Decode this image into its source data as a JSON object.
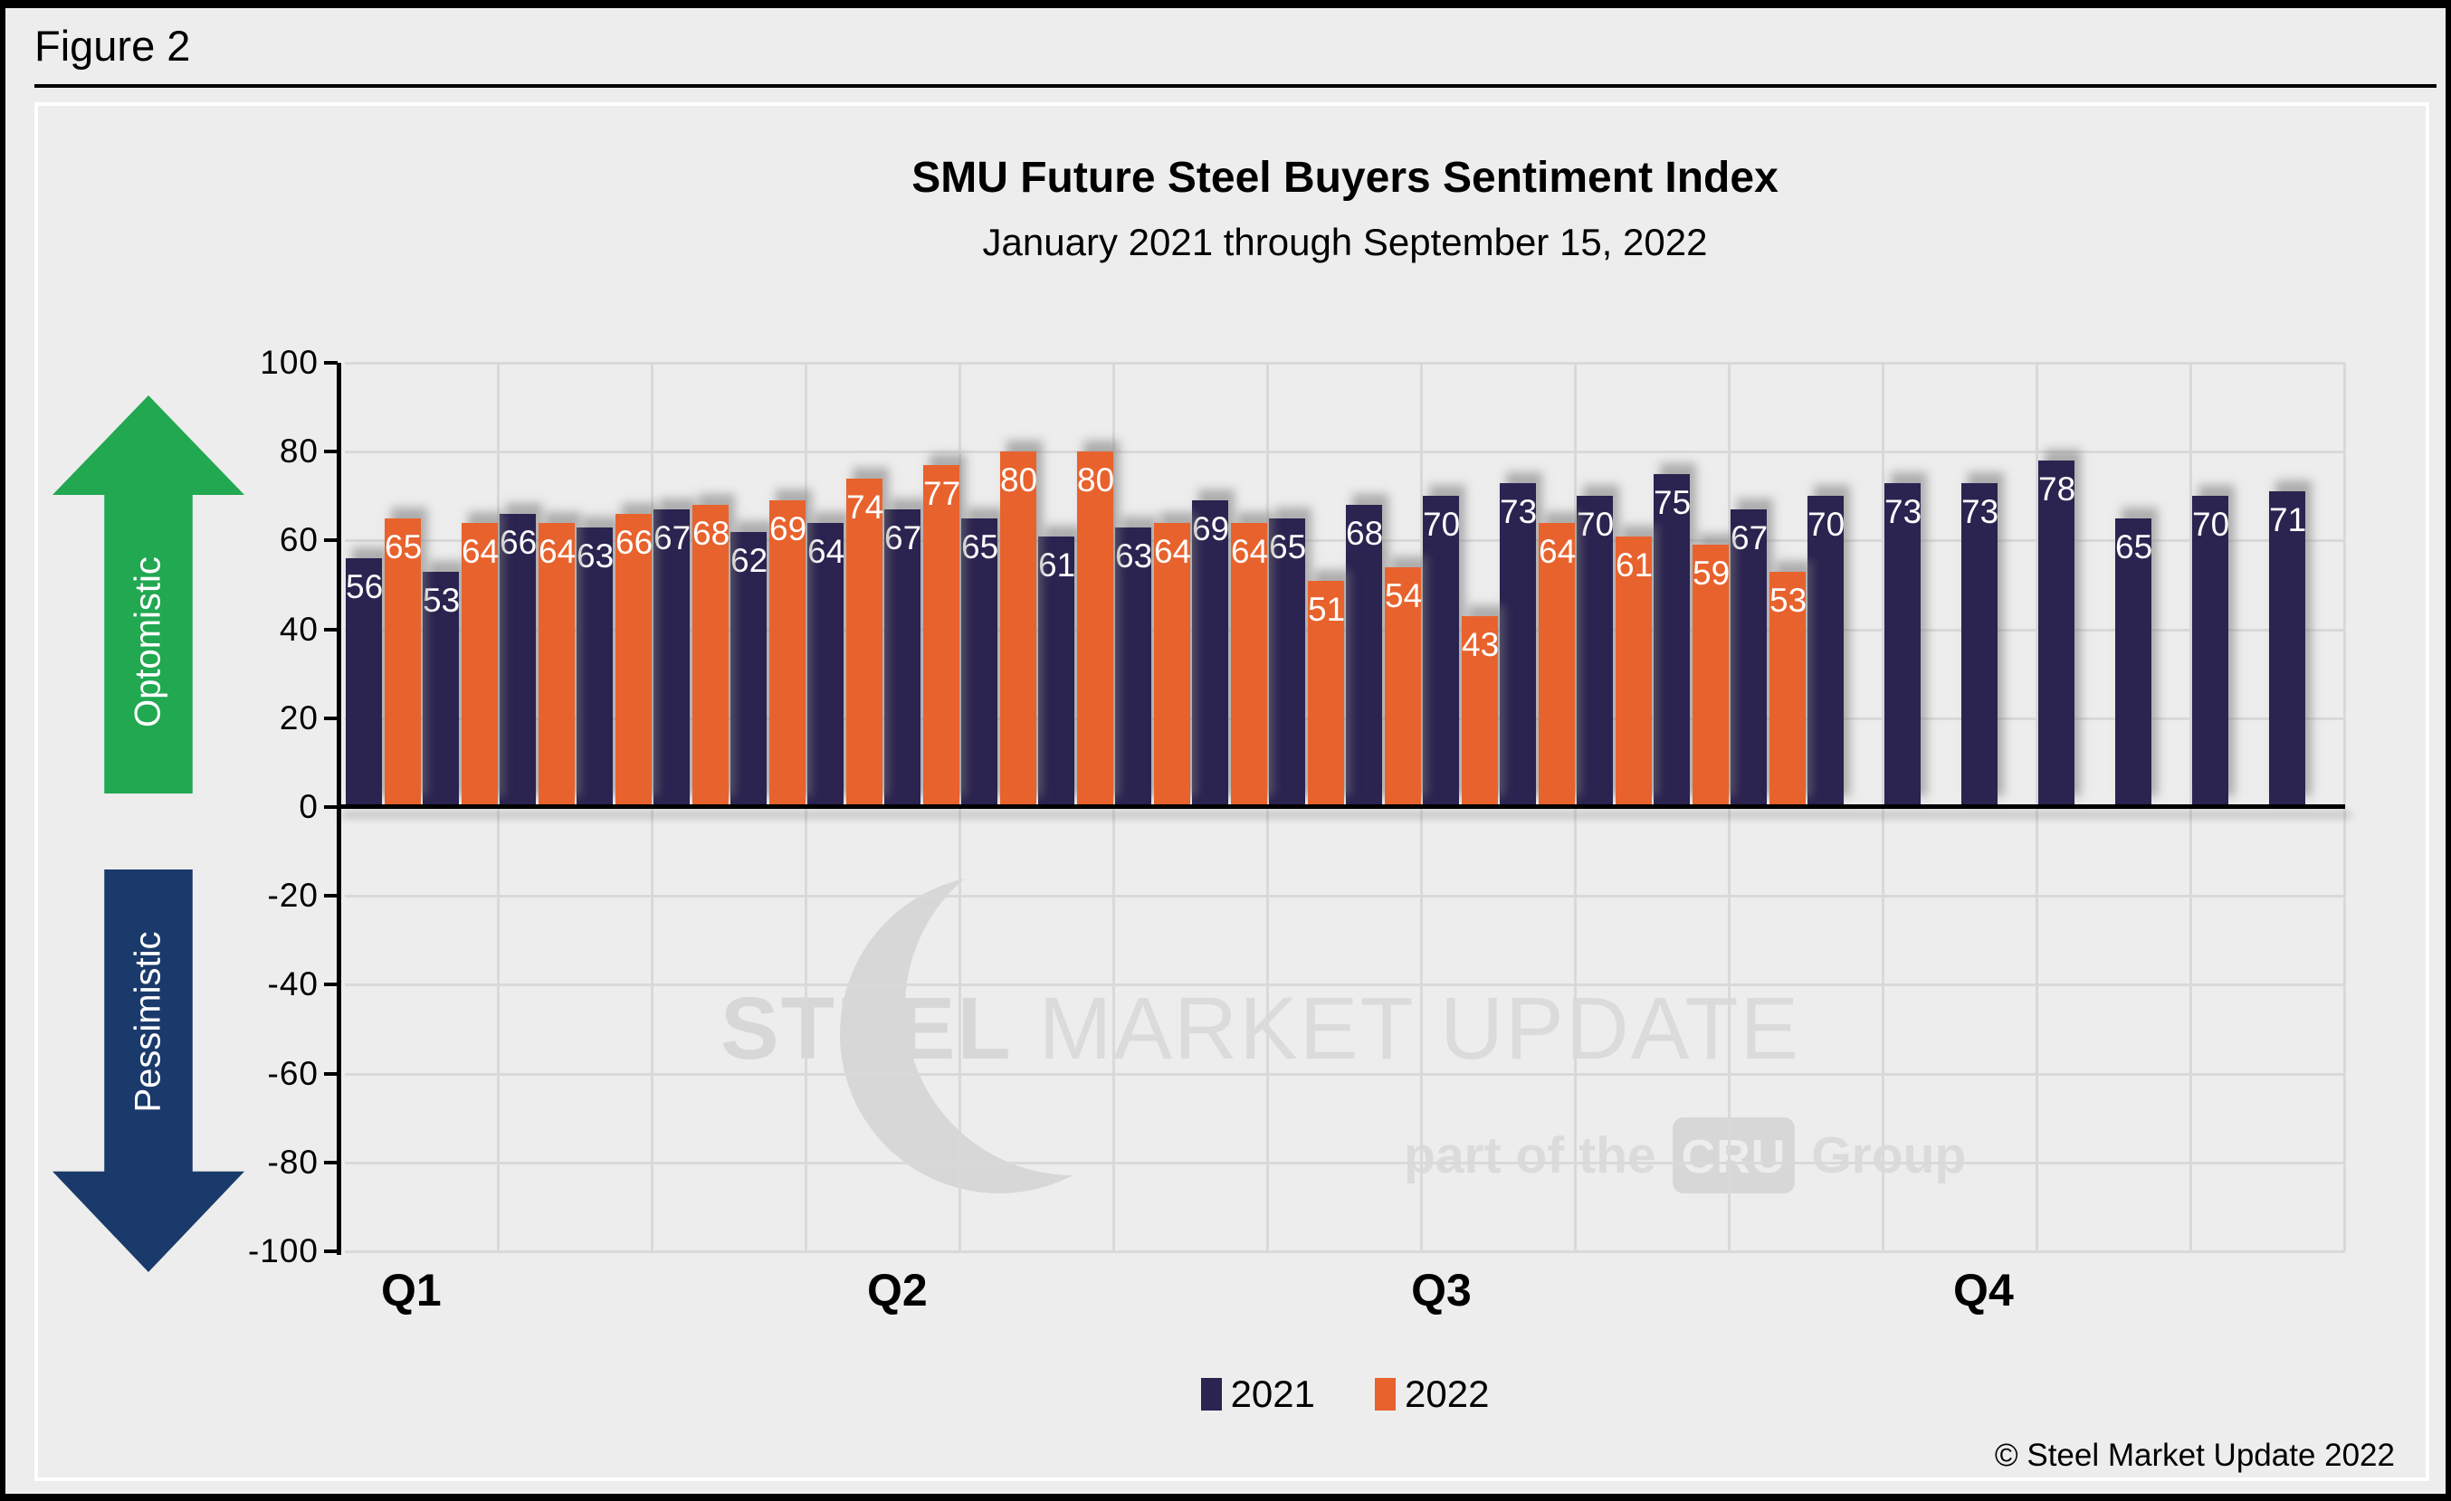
{
  "figure_label": "Figure 2",
  "header": {
    "title": "SMU Future Steel Buyers Sentiment Index",
    "subtitle": "January 2021 through September 15, 2022"
  },
  "arrows": {
    "up_label": "Optomistic",
    "up_color": "#21A851",
    "down_label": "Pessimistic",
    "down_color": "#1A3A6B"
  },
  "watermark": {
    "steel": "STEEL",
    "market_update": " MARKET UPDATE",
    "part_of_the": "part of the",
    "cru": "CRU",
    "group": "Group"
  },
  "legend": [
    {
      "label": "2021",
      "color": "#2B2350"
    },
    {
      "label": "2022",
      "color": "#E8622D"
    }
  ],
  "copyright": "© Steel Market Update 2022",
  "colors": {
    "background": "#EDEDED",
    "gridline": "#D9D9D9",
    "bar_2021": "#2B2350",
    "bar_2022": "#E8622D",
    "bar_label": "#FFFFFF",
    "axis": "#000000"
  },
  "chart_data": {
    "type": "bar",
    "title": "SMU Future Steel Buyers Sentiment Index",
    "subtitle": "January 2021 through September 15, 2022",
    "categories": [
      1,
      2,
      3,
      4,
      5,
      6,
      7,
      8,
      9,
      10,
      11,
      12,
      13,
      14,
      15,
      16,
      17,
      18,
      19,
      20,
      21,
      22,
      23,
      24,
      25,
      26
    ],
    "series": [
      {
        "name": "2021",
        "color": "#2B2350",
        "values": [
          56,
          53,
          66,
          63,
          67,
          62,
          64,
          67,
          65,
          61,
          63,
          69,
          65,
          68,
          70,
          73,
          70,
          75,
          67,
          70,
          73,
          73,
          78,
          65,
          70,
          71
        ]
      },
      {
        "name": "2022",
        "color": "#E8622D",
        "values": [
          65,
          64,
          64,
          66,
          68,
          69,
          74,
          77,
          80,
          80,
          64,
          64,
          51,
          54,
          43,
          64,
          61,
          59,
          53,
          null,
          null,
          null,
          null,
          null,
          null,
          null
        ]
      }
    ],
    "x_tick_labels": [
      "Q1",
      "Q2",
      "Q3",
      "Q4"
    ],
    "quarter_positions_pct": [
      1.6,
      25.9,
      53.1,
      80.2
    ],
    "y_ticks": [
      100,
      80,
      60,
      40,
      20,
      0,
      -20,
      -40,
      -60,
      -80,
      -100
    ],
    "ylim": [
      -100,
      100
    ],
    "y_interval": 20,
    "grid": true,
    "legend_position": "bottom",
    "value_labels": "inside end, white"
  }
}
